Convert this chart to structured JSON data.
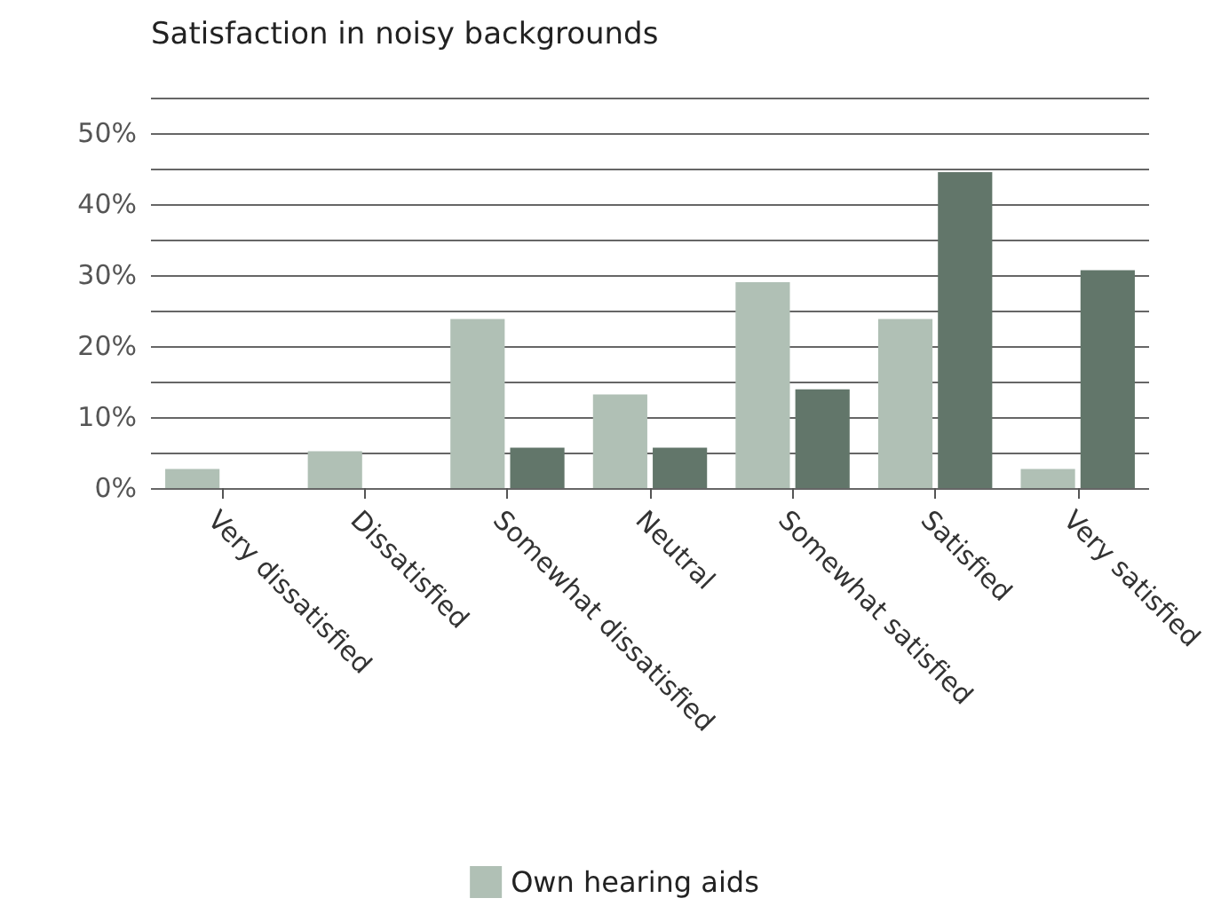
{
  "chart_data": {
    "type": "bar",
    "title": "Satisfaction in noisy backgrounds",
    "categories": [
      "Very dissatisfied",
      "Dissatisfied",
      "Somewhat dissatisfied",
      "Neutral",
      "Somewhat satisfied",
      "Satisfied",
      "Very satisfied"
    ],
    "series": [
      {
        "name": "Own hearing aids",
        "color": "#b0c0b5",
        "values": [
          2.7,
          5.2,
          23.8,
          13.2,
          29,
          23.8,
          2.7
        ]
      },
      {
        "color": "#62766a",
        "values": [
          0,
          0,
          5.7,
          5.7,
          13.9,
          44.5,
          30.7
        ]
      }
    ],
    "ylim": [
      0,
      55
    ],
    "yticks": [
      {
        "value": 0,
        "label": "0%"
      },
      {
        "value": 5,
        "label": null
      },
      {
        "value": 10,
        "label": "10%"
      },
      {
        "value": 15,
        "label": null
      },
      {
        "value": 20,
        "label": "20%"
      },
      {
        "value": 25,
        "label": null
      },
      {
        "value": 30,
        "label": "30%"
      },
      {
        "value": 35,
        "label": null
      },
      {
        "value": 40,
        "label": "40%"
      },
      {
        "value": 45,
        "label": null
      },
      {
        "value": 50,
        "label": "50%"
      },
      {
        "value": 55,
        "label": null
      }
    ],
    "grid": "y",
    "legend": "bottom"
  }
}
